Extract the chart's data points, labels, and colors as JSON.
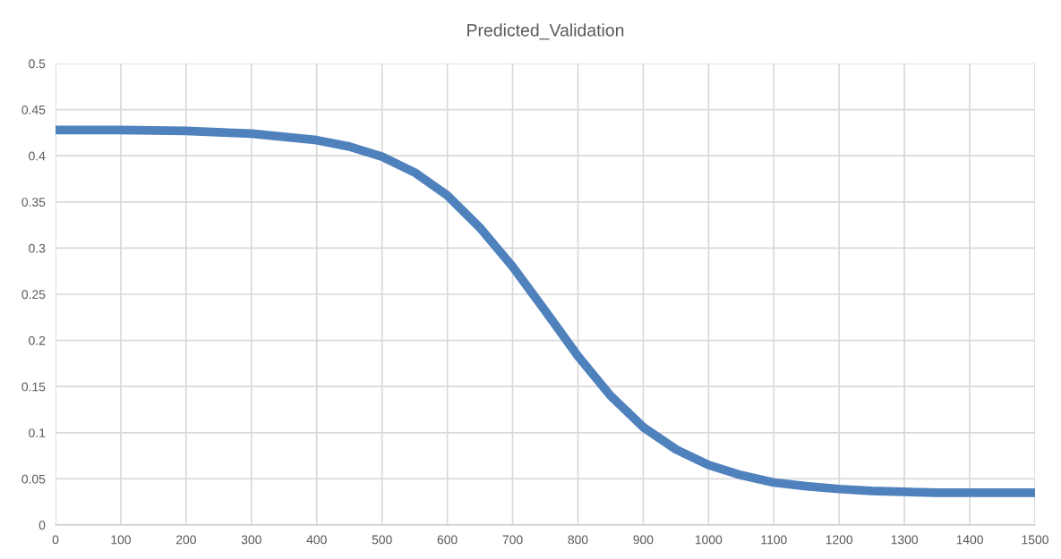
{
  "chart_data": {
    "type": "line",
    "title": "Predicted_Validation",
    "x": [
      0,
      100,
      200,
      300,
      400,
      450,
      500,
      550,
      600,
      650,
      700,
      750,
      800,
      850,
      900,
      950,
      1000,
      1050,
      1100,
      1150,
      1200,
      1250,
      1300,
      1350,
      1400,
      1450,
      1500
    ],
    "series": [
      {
        "color": "#4f81bd",
        "values": [
          0.428,
          0.428,
          0.427,
          0.424,
          0.417,
          0.41,
          0.399,
          0.382,
          0.357,
          0.322,
          0.28,
          0.232,
          0.183,
          0.14,
          0.106,
          0.082,
          0.065,
          0.054,
          0.046,
          0.042,
          0.039,
          0.037,
          0.036,
          0.035,
          0.035,
          0.035,
          0.035
        ]
      }
    ],
    "xlim": [
      0,
      1500
    ],
    "xticks": [
      0,
      100,
      200,
      300,
      400,
      500,
      600,
      700,
      800,
      900,
      1000,
      1100,
      1200,
      1300,
      1400,
      1500
    ],
    "ylim": [
      0,
      0.5
    ],
    "yticks": [
      0,
      0.05,
      0.1,
      0.15,
      0.2,
      0.25,
      0.3,
      0.35,
      0.4,
      0.45,
      0.5
    ],
    "grid": true,
    "marker": "none",
    "line_style": "solid"
  }
}
